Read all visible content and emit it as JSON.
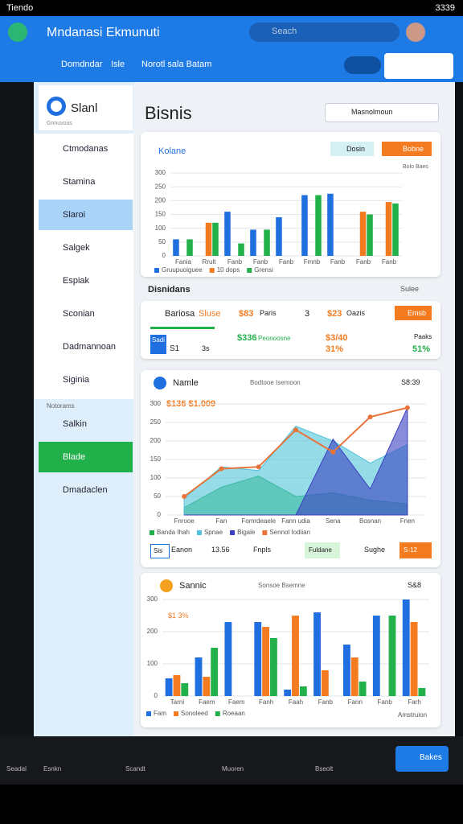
{
  "status": {
    "time": "Tiendo",
    "clock": "3339"
  },
  "app": {
    "title": "Mndanasi Ekmunuti",
    "search": "Seach"
  },
  "tabs": [
    "Domdndar",
    "Isle",
    "Norotl sala Batam"
  ],
  "sidebar": {
    "title": "Slanl",
    "subtitle": "Gnnuvous",
    "items": [
      "Ctmodanas",
      "Stamina",
      "Slaroi",
      "Salgek",
      "Espiak",
      "Sconian",
      "Dadmannoan",
      "Siginia"
    ],
    "section": "Notorams",
    "items2": [
      "Salkin",
      "Blade",
      "Dmadaclen"
    ]
  },
  "page": {
    "title": "Bisnis",
    "action": "Masnolmoun"
  },
  "card1": {
    "title": "Kolane",
    "chip1": "Dosin",
    "chip2": "Bobne",
    "note": "Bolo Baes",
    "chart": {
      "type": "bar",
      "categories": [
        "Fania",
        "Rrult",
        "Fanb",
        "Fanb",
        "Fanb",
        "Fmnb",
        "Fanb",
        "Fanb",
        "Fanb"
      ],
      "series": [
        {
          "name": "Gruupuoiguee",
          "color": "#1f6fe0",
          "values": [
            60,
            null,
            160,
            95,
            140,
            220,
            225,
            null,
            null
          ]
        },
        {
          "name": "10 dops",
          "color": "#f47b20",
          "values": [
            null,
            120,
            null,
            null,
            null,
            null,
            null,
            160,
            195
          ]
        },
        {
          "name": "Grensi",
          "color": "#22b04b",
          "values": [
            60,
            120,
            45,
            95,
            null,
            220,
            null,
            150,
            190
          ]
        }
      ],
      "ylim": [
        0,
        300
      ],
      "yticks": [
        0,
        50,
        100,
        150,
        200,
        250,
        300
      ]
    }
  },
  "section2": {
    "title": "Disnidans",
    "link": "Sulee"
  },
  "stats": {
    "row1": [
      "Bariosa",
      "Sluse",
      "$83",
      "Paris",
      "3",
      "$23",
      "Oazis",
      "Emsb"
    ],
    "row2": [
      "Sadi",
      "S1",
      "3s",
      "$336",
      "Peonoosne",
      "$3/40",
      "31%",
      "Paaks",
      "51%"
    ]
  },
  "card3": {
    "title": "Namle",
    "subtitle": "Bodtooe Isemoon",
    "badge": "S8:39",
    "value": "$136 $1.009",
    "chart": {
      "type": "area",
      "categories": [
        "Fnrooe",
        "Fan",
        "Fomrdeaele",
        "Fann udia",
        "Sena",
        "Bosnan",
        "Fnen"
      ],
      "series": [
        {
          "name": "Banda Ihah",
          "color": "#22b04b",
          "values": [
            20,
            75,
            105,
            50,
            60,
            40,
            30
          ]
        },
        {
          "name": "Spnae",
          "color": "#4fc3d9",
          "values": [
            45,
            130,
            120,
            240,
            200,
            140,
            190
          ]
        },
        {
          "name": "Bigale",
          "color": "#3b3fbf",
          "values": [
            0,
            0,
            0,
            0,
            205,
            70,
            290
          ]
        },
        {
          "name": "Sennol Iodiian",
          "color": "#e8743a",
          "line": true,
          "values": [
            50,
            125,
            130,
            230,
            170,
            265,
            290
          ]
        }
      ],
      "ylim": [
        0,
        300
      ],
      "yticks": [
        0,
        50,
        100,
        150,
        200,
        250,
        300
      ]
    },
    "footer": [
      "Sis",
      "Eanon",
      "13.56",
      "Fnpls",
      "Fuldane",
      "Sughe",
      "S-12"
    ]
  },
  "card4": {
    "title": "Sannic",
    "subtitle": "Sonsoe Bsemne",
    "badge": "S&8",
    "value": "$1 3%",
    "chart": {
      "type": "bar",
      "categories": [
        "Tarni",
        "Faem",
        "Faem",
        "Fanh",
        "Faah",
        "Fanb",
        "Fann",
        "Fanb",
        "Farh"
      ],
      "series": [
        {
          "name": "Fam",
          "color": "#1f6fe0",
          "values": [
            55,
            120,
            230,
            230,
            20,
            260,
            160,
            250,
            300
          ]
        },
        {
          "name": "Sonoleed",
          "color": "#f47b20",
          "values": [
            65,
            60,
            null,
            215,
            250,
            80,
            120,
            null,
            230
          ]
        },
        {
          "name": "Roeaan",
          "color": "#22b04b",
          "values": [
            40,
            150,
            null,
            180,
            30,
            null,
            45,
            250,
            25
          ]
        }
      ],
      "ylim": [
        0,
        300
      ],
      "yticks": [
        0,
        100,
        200,
        300
      ]
    },
    "footer": "Amstruion"
  },
  "nav": [
    "Seadal",
    "Esnkn",
    "Scandt",
    "Muoren",
    "Bseolt"
  ],
  "navButton": "Bakes"
}
